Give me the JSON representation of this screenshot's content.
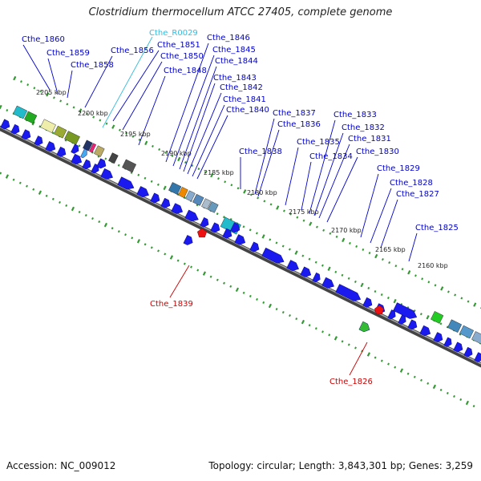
{
  "title": "Clostridium thermocellum ATCC 27405, complete genome",
  "footer": {
    "accession": "Accession: NC_009012",
    "stats": "Topology: circular; Length: 3,843,301 bp; Genes: 3,259"
  },
  "colors": {
    "forward_label": "#0000cc",
    "reverse_label": "#cc0000",
    "rna_label": "#33bbdd",
    "cds": "#1a1aee",
    "backbone": "#666666",
    "ticks": "#339933",
    "pseudo_marker": "#ee1111"
  },
  "kbp_marks": [
    "2205 kbp",
    "2200 kbp",
    "2195 kbp",
    "2190 kbp",
    "2185 kbp",
    "2180 kbp",
    "2175 kbp",
    "2170 kbp",
    "2165 kbp",
    "2160 kbp"
  ],
  "forward_labels": [
    "Cthe_1860",
    "Cthe_1859",
    "Cthe_1858",
    "Cthe_1856",
    "Cthe_1851",
    "Cthe_1850",
    "Cthe_1848",
    "Cthe_1846",
    "Cthe_1845",
    "Cthe_1844",
    "Cthe_1843",
    "Cthe_1842",
    "Cthe_1841",
    "Cthe_1840",
    "Cthe_1838",
    "Cthe_1837",
    "Cthe_1836",
    "Cthe_1835",
    "Cthe_1834",
    "Cthe_1833",
    "Cthe_1832",
    "Cthe_1831",
    "Cthe_1830",
    "Cthe_1829",
    "Cthe_1828",
    "Cthe_1827",
    "Cthe_1825"
  ],
  "rna_labels": [
    "Cthe_R0029"
  ],
  "reverse_labels": [
    "Cthe_1839",
    "Cthe_1826"
  ]
}
